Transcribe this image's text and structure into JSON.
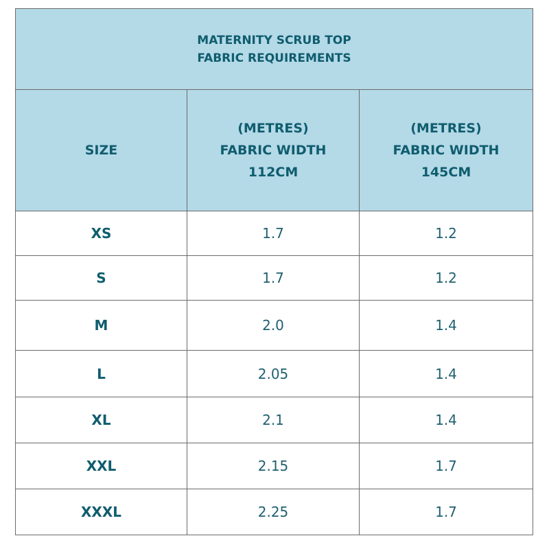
{
  "header": {
    "title": [
      "MATERNITY SCRUB TOP",
      "FABRIC REQUIREMENTS"
    ]
  },
  "table": {
    "columns": [
      [
        "SIZE"
      ],
      [
        "(METRES)",
        "FABRIC WIDTH",
        "112CM"
      ],
      [
        "(METRES)",
        "FABRIC WIDTH",
        "145CM"
      ]
    ],
    "rows": [
      [
        "XS",
        "1.7",
        "1.2"
      ],
      [
        "S",
        "1.7",
        "1.2"
      ],
      [
        "M",
        "2.0",
        "1.4"
      ],
      [
        "L",
        "2.05",
        "1.4"
      ],
      [
        "XL",
        "2.1",
        "1.4"
      ],
      [
        "XXL",
        "2.15",
        "1.7"
      ],
      [
        "XXXL",
        "2.25",
        "1.7"
      ]
    ]
  }
}
